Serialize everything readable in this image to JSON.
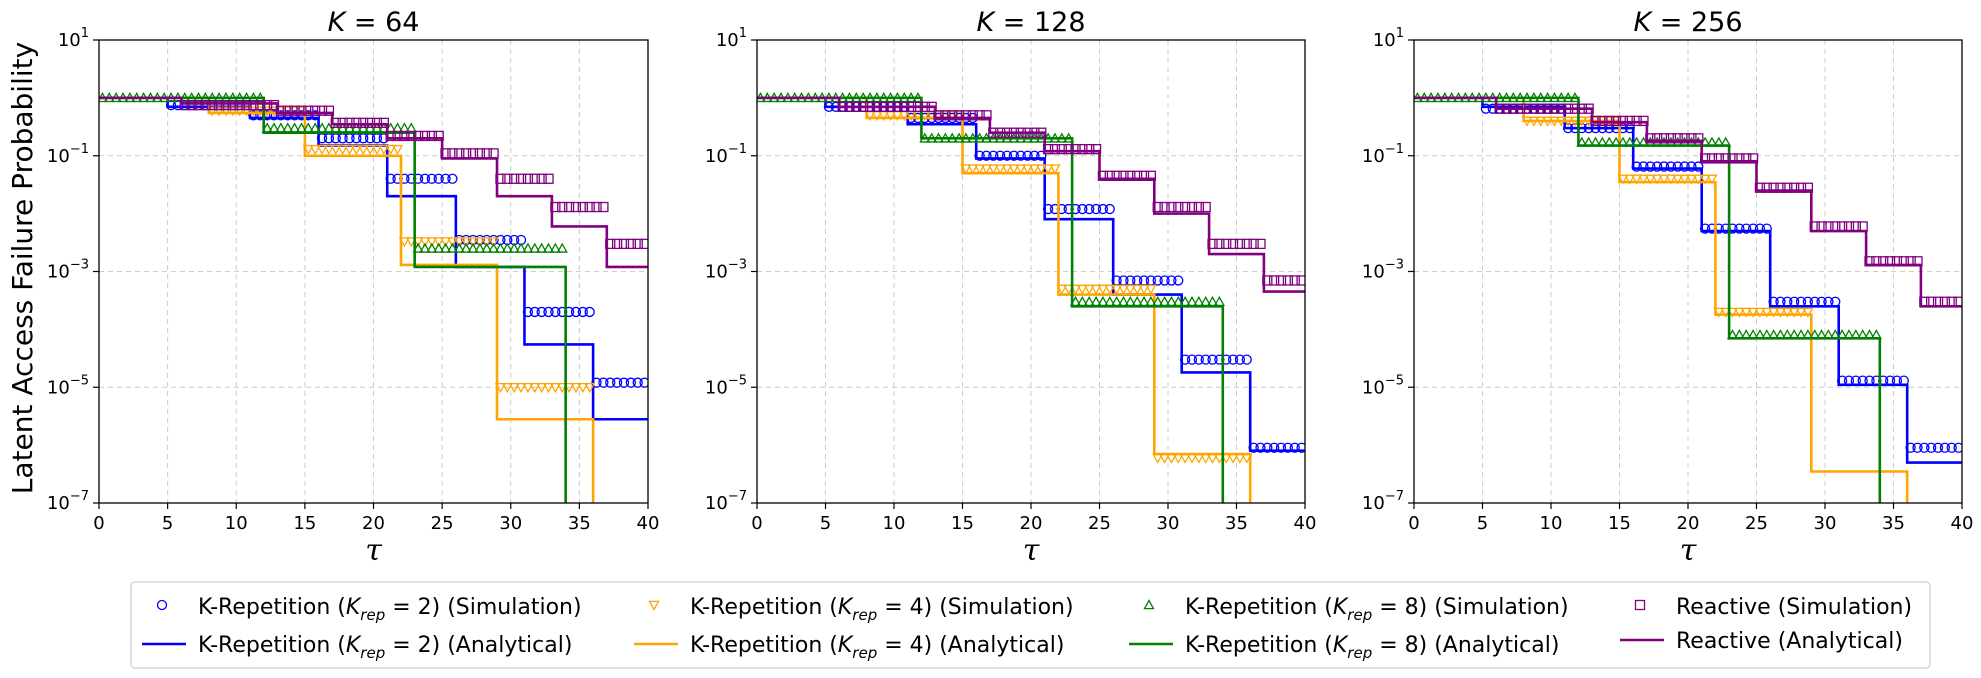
{
  "ylabel": "Latent Access Failure Probability",
  "xlabel": "τ",
  "chart_data": [
    {
      "type": "line",
      "title_var": "K",
      "title_value": "64",
      "title": "K = 64",
      "xlabel": "τ",
      "ylabel": "Latent Access Failure Probability",
      "xlim": [
        0,
        40
      ],
      "ylim_log10": [
        -7,
        1
      ],
      "x_ticks": [
        0,
        5,
        10,
        15,
        20,
        25,
        30,
        35,
        40
      ],
      "y_ticks_exp": [
        -7,
        -5,
        -3,
        -1,
        1
      ],
      "grid": true,
      "series": [
        {
          "key": "krep2_analytical",
          "kind": "step",
          "x": [
            0,
            5,
            11,
            16,
            21,
            26,
            31,
            36,
            40
          ],
          "values": [
            1,
            0.7,
            0.45,
            0.15,
            0.02,
            0.0012,
            5.5e-05,
            2.8e-06,
            2.8e-06
          ]
        },
        {
          "key": "krep2_simulation",
          "kind": "marker",
          "steps": [
            [
              5,
              11,
              0.75
            ],
            [
              11,
              16,
              0.5
            ],
            [
              16,
              21,
              0.2
            ],
            [
              21,
              26,
              0.04
            ],
            [
              26,
              31,
              0.0035
            ],
            [
              31,
              36,
              0.0002
            ],
            [
              36,
              40,
              1.2e-05
            ]
          ]
        },
        {
          "key": "krep4_analytical",
          "kind": "step",
          "x": [
            0,
            8,
            15,
            22,
            29,
            36
          ],
          "values": [
            1,
            0.55,
            0.1,
            0.0013,
            2.8e-06,
            1e-08
          ]
        },
        {
          "key": "krep4_simulation",
          "kind": "marker",
          "steps": [
            [
              8,
              15,
              0.6
            ],
            [
              15,
              22,
              0.13
            ],
            [
              22,
              29,
              0.0033
            ],
            [
              29,
              36,
              1e-05
            ]
          ]
        },
        {
          "key": "krep8_analytical",
          "kind": "step",
          "x": [
            0,
            12,
            23,
            34
          ],
          "values": [
            1,
            0.25,
            0.0012,
            1e-08
          ]
        },
        {
          "key": "krep8_simulation",
          "kind": "marker",
          "steps": [
            [
              0,
              12,
              1
            ],
            [
              12,
              23,
              0.3
            ],
            [
              23,
              34,
              0.0025
            ]
          ]
        },
        {
          "key": "reactive_analytical",
          "kind": "step",
          "x": [
            0,
            6,
            13,
            17,
            21,
            25,
            29,
            33,
            37,
            40
          ],
          "values": [
            1,
            0.8,
            0.55,
            0.35,
            0.2,
            0.09,
            0.02,
            0.006,
            0.0012,
            0.0012
          ]
        },
        {
          "key": "reactive_simulation",
          "kind": "marker",
          "steps": [
            [
              6,
              13,
              0.75
            ],
            [
              13,
              17,
              0.6
            ],
            [
              17,
              21,
              0.37
            ],
            [
              21,
              25,
              0.22
            ],
            [
              25,
              29,
              0.11
            ],
            [
              29,
              33,
              0.04
            ],
            [
              33,
              37,
              0.013
            ],
            [
              37,
              40,
              0.003
            ]
          ]
        }
      ]
    },
    {
      "type": "line",
      "title_var": "K",
      "title_value": "128",
      "title": "K = 128",
      "xlabel": "τ",
      "xlim": [
        0,
        40
      ],
      "ylim_log10": [
        -7,
        1
      ],
      "x_ticks": [
        0,
        5,
        10,
        15,
        20,
        25,
        30,
        35,
        40
      ],
      "y_ticks_exp": [
        -7,
        -5,
        -3,
        -1,
        1
      ],
      "grid": true,
      "series": [
        {
          "key": "krep2_analytical",
          "kind": "step",
          "x": [
            0,
            5,
            11,
            16,
            21,
            26,
            31,
            36,
            40
          ],
          "values": [
            1,
            0.7,
            0.35,
            0.09,
            0.008,
            0.0004,
            1.8e-05,
            8e-07,
            8e-07
          ]
        },
        {
          "key": "krep2_simulation",
          "kind": "marker",
          "steps": [
            [
              5,
              11,
              0.7
            ],
            [
              11,
              16,
              0.45
            ],
            [
              16,
              21,
              0.1
            ],
            [
              21,
              26,
              0.012
            ],
            [
              26,
              31,
              0.0007
            ],
            [
              31,
              36,
              3e-05
            ],
            [
              36,
              40,
              9e-07
            ]
          ]
        },
        {
          "key": "krep4_analytical",
          "kind": "step",
          "x": [
            0,
            8,
            15,
            22,
            29,
            36
          ],
          "values": [
            1,
            0.45,
            0.05,
            0.0004,
            7e-07,
            1e-08
          ]
        },
        {
          "key": "krep4_simulation",
          "kind": "marker",
          "steps": [
            [
              8,
              15,
              0.5
            ],
            [
              15,
              22,
              0.06
            ],
            [
              22,
              29,
              0.0005
            ],
            [
              29,
              36,
              6e-07
            ]
          ]
        },
        {
          "key": "krep8_analytical",
          "kind": "step",
          "x": [
            0,
            12,
            23,
            34
          ],
          "values": [
            1,
            0.2,
            0.00025,
            1e-08
          ]
        },
        {
          "key": "krep8_simulation",
          "kind": "marker",
          "steps": [
            [
              0,
              12,
              1
            ],
            [
              12,
              23,
              0.2
            ],
            [
              23,
              34,
              0.0003
            ]
          ]
        },
        {
          "key": "reactive_analytical",
          "kind": "step",
          "x": [
            0,
            6,
            13,
            17,
            21,
            25,
            29,
            33,
            37,
            40
          ],
          "values": [
            1,
            0.7,
            0.45,
            0.25,
            0.12,
            0.04,
            0.01,
            0.002,
            0.00045,
            0.00045
          ]
        },
        {
          "key": "reactive_simulation",
          "kind": "marker",
          "steps": [
            [
              6,
              13,
              0.7
            ],
            [
              13,
              17,
              0.5
            ],
            [
              17,
              21,
              0.25
            ],
            [
              21,
              25,
              0.13
            ],
            [
              25,
              29,
              0.045
            ],
            [
              29,
              33,
              0.013
            ],
            [
              33,
              37,
              0.003
            ],
            [
              37,
              40,
              0.0007
            ]
          ]
        }
      ]
    },
    {
      "type": "line",
      "title_var": "K",
      "title_value": "256",
      "title": "K = 256",
      "xlabel": "τ",
      "xlim": [
        0,
        40
      ],
      "ylim_log10": [
        -7,
        1
      ],
      "x_ticks": [
        0,
        5,
        10,
        15,
        20,
        25,
        30,
        35,
        40
      ],
      "y_ticks_exp": [
        -7,
        -5,
        -3,
        -1,
        1
      ],
      "grid": true,
      "series": [
        {
          "key": "krep2_analytical",
          "kind": "step",
          "x": [
            0,
            5,
            11,
            16,
            21,
            26,
            31,
            36,
            40
          ],
          "values": [
            1,
            0.7,
            0.3,
            0.06,
            0.005,
            0.00025,
            1.1e-05,
            5e-07,
            5e-07
          ]
        },
        {
          "key": "krep2_simulation",
          "kind": "marker",
          "steps": [
            [
              5,
              11,
              0.65
            ],
            [
              11,
              16,
              0.3
            ],
            [
              16,
              21,
              0.065
            ],
            [
              21,
              26,
              0.0055
            ],
            [
              26,
              31,
              0.0003
            ],
            [
              31,
              36,
              1.3e-05
            ],
            [
              36,
              40,
              9e-07
            ]
          ]
        },
        {
          "key": "krep4_analytical",
          "kind": "step",
          "x": [
            0,
            8,
            15,
            22,
            29,
            36
          ],
          "values": [
            1,
            0.4,
            0.035,
            0.00018,
            3.5e-07,
            1e-08
          ]
        },
        {
          "key": "krep4_simulation",
          "kind": "marker",
          "steps": [
            [
              8,
              15,
              0.4
            ],
            [
              15,
              22,
              0.04
            ],
            [
              22,
              29,
              0.0002
            ]
          ]
        },
        {
          "key": "krep8_analytical",
          "kind": "step",
          "x": [
            0,
            12,
            23,
            34
          ],
          "values": [
            1,
            0.15,
            7e-05,
            1e-08
          ]
        },
        {
          "key": "krep8_simulation",
          "kind": "marker",
          "steps": [
            [
              0,
              12,
              1
            ],
            [
              12,
              23,
              0.17
            ],
            [
              23,
              34,
              8e-05
            ]
          ]
        },
        {
          "key": "reactive_analytical",
          "kind": "step",
          "x": [
            0,
            6,
            13,
            17,
            21,
            25,
            29,
            33,
            37,
            40
          ],
          "values": [
            1,
            0.65,
            0.38,
            0.18,
            0.08,
            0.025,
            0.005,
            0.0013,
            0.00025,
            0.00025
          ]
        },
        {
          "key": "reactive_simulation",
          "kind": "marker",
          "steps": [
            [
              6,
              13,
              0.65
            ],
            [
              13,
              17,
              0.4
            ],
            [
              17,
              21,
              0.2
            ],
            [
              21,
              25,
              0.09
            ],
            [
              25,
              29,
              0.028
            ],
            [
              29,
              33,
              0.006
            ],
            [
              33,
              37,
              0.0015
            ],
            [
              37,
              40,
              0.0003
            ]
          ]
        }
      ]
    }
  ],
  "series_styles": {
    "krep2_simulation": {
      "color": "#0000ff",
      "marker": "circle"
    },
    "krep2_analytical": {
      "color": "#0000ff"
    },
    "krep4_simulation": {
      "color": "#ffa500",
      "marker": "triangle-down"
    },
    "krep4_analytical": {
      "color": "#ffa500"
    },
    "krep8_simulation": {
      "color": "#008000",
      "marker": "triangle-up"
    },
    "krep8_analytical": {
      "color": "#008000"
    },
    "reactive_simulation": {
      "color": "#800080",
      "marker": "square"
    },
    "reactive_analytical": {
      "color": "#800080"
    }
  },
  "legend": [
    {
      "key": "krep2_simulation",
      "prefix": "K-Repetition (",
      "var": "K",
      "sub": "rep",
      "eq": " = 2) ",
      "suffix": "(Simulation)"
    },
    {
      "key": "krep2_analytical",
      "prefix": "K-Repetition (",
      "var": "K",
      "sub": "rep",
      "eq": " = 2) ",
      "suffix": "(Analytical)"
    },
    {
      "key": "krep4_simulation",
      "prefix": "K-Repetition (",
      "var": "K",
      "sub": "rep",
      "eq": " = 4) ",
      "suffix": "(Simulation)"
    },
    {
      "key": "krep4_analytical",
      "prefix": "K-Repetition (",
      "var": "K",
      "sub": "rep",
      "eq": " = 4) ",
      "suffix": "(Analytical)"
    },
    {
      "key": "krep8_simulation",
      "prefix": "K-Repetition (",
      "var": "K",
      "sub": "rep",
      "eq": " = 8) ",
      "suffix": "(Simulation)"
    },
    {
      "key": "krep8_analytical",
      "prefix": "K-Repetition (",
      "var": "K",
      "sub": "rep",
      "eq": " = 8) ",
      "suffix": "(Analytical)"
    },
    {
      "key": "reactive_simulation",
      "prefix": "Reactive (Simulation)",
      "var": "",
      "sub": "",
      "eq": "",
      "suffix": ""
    },
    {
      "key": "reactive_analytical",
      "prefix": "Reactive (Analytical)",
      "var": "",
      "sub": "",
      "eq": "",
      "suffix": ""
    }
  ]
}
